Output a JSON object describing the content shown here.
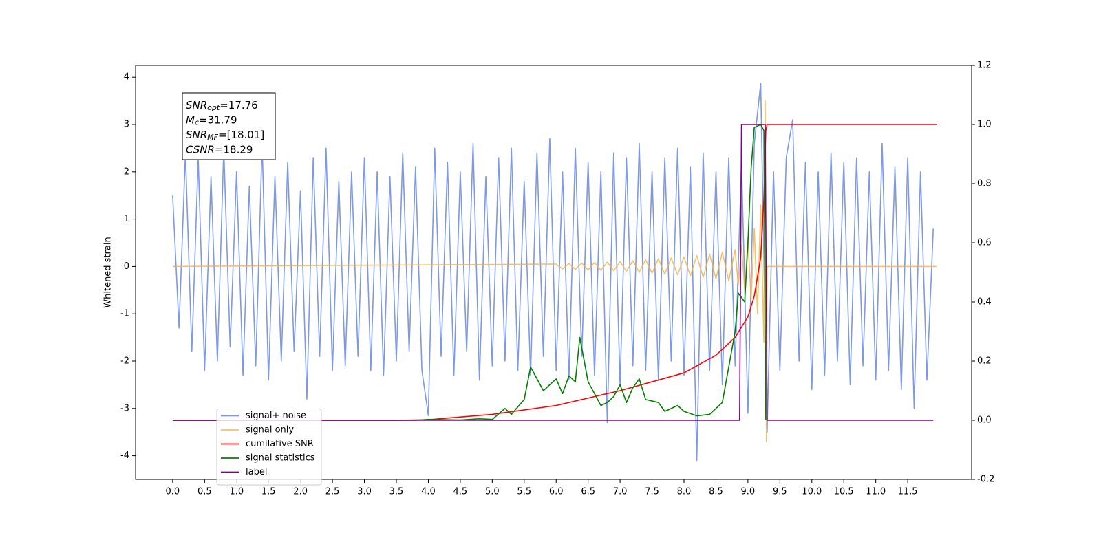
{
  "chart_data": {
    "type": "line",
    "y_label": "Whitened strain",
    "xlim": [
      -0.58,
      12.5
    ],
    "xticks": [
      {
        "value": 0,
        "label": "0.0"
      },
      0.5,
      {
        "value": 1,
        "label": "1.0"
      },
      1.5,
      {
        "value": 2,
        "label": "2.0"
      },
      2.5,
      {
        "value": 3,
        "label": "3.0"
      },
      3.5,
      {
        "value": 4,
        "label": "4.0"
      },
      4.5,
      {
        "value": 5,
        "label": "5.0"
      },
      5.5,
      {
        "value": 6,
        "label": "6.0"
      },
      6.5,
      {
        "value": 7,
        "label": "7.0"
      },
      7.5,
      {
        "value": 8,
        "label": "8.0"
      },
      8.5,
      {
        "value": 9,
        "label": "9.0"
      },
      9.5,
      {
        "value": 10,
        "label": "10.0"
      },
      10.5,
      {
        "value": 11,
        "label": "11.0"
      },
      11.5
    ],
    "ylim": [
      -4.5,
      4.25
    ],
    "yticks": [
      -4,
      -3,
      -2,
      -1,
      0,
      1,
      2,
      3,
      4
    ],
    "y2lim": [
      -0.2,
      1.2
    ],
    "y2ticks": [
      -0.2,
      {
        "value": 0,
        "label": "0.0"
      },
      0.2,
      0.4,
      0.6,
      0.8,
      {
        "value": 1,
        "label": "1.0"
      },
      1.2
    ],
    "legend": "lower left",
    "annotations": [
      {
        "main": "SNR",
        "sub": "opt",
        "rest": "=17.76"
      },
      {
        "main": "M",
        "sub": "c",
        "rest": "=31.79"
      },
      {
        "main": "SNR",
        "sub": "MF",
        "rest": "=[18.01]"
      },
      {
        "main": "CSNR",
        "sub": "",
        "rest": "=18.29"
      }
    ],
    "series": [
      {
        "name": "signal+ noise",
        "color": "#6f8ee6",
        "opacity": 0.9,
        "x": [
          0.0,
          0.1,
          0.2,
          0.3,
          0.4,
          0.5,
          0.6,
          0.7,
          0.8,
          0.9,
          1.0,
          1.1,
          1.2,
          1.3,
          1.4,
          1.5,
          1.6,
          1.7,
          1.8,
          1.9,
          2.0,
          2.1,
          2.2,
          2.3,
          2.4,
          2.5,
          2.6,
          2.7,
          2.8,
          2.9,
          3.0,
          3.1,
          3.2,
          3.3,
          3.4,
          3.5,
          3.6,
          3.7,
          3.8,
          3.9,
          4.0,
          4.1,
          4.2,
          4.3,
          4.4,
          4.5,
          4.6,
          4.7,
          4.8,
          4.9,
          5.0,
          5.1,
          5.2,
          5.3,
          5.4,
          5.5,
          5.6,
          5.7,
          5.8,
          5.9,
          6.0,
          6.1,
          6.2,
          6.3,
          6.4,
          6.5,
          6.6,
          6.7,
          6.8,
          6.9,
          7.0,
          7.1,
          7.2,
          7.3,
          7.4,
          7.5,
          7.6,
          7.7,
          7.8,
          7.9,
          8.0,
          8.1,
          8.2,
          8.3,
          8.4,
          8.5,
          8.6,
          8.7,
          8.8,
          8.9,
          9.0,
          9.1,
          9.2,
          9.3,
          9.4,
          9.5,
          9.6,
          9.7,
          9.8,
          9.9,
          10.0,
          10.1,
          10.2,
          10.3,
          10.4,
          10.5,
          10.6,
          10.7,
          10.8,
          10.9,
          11.0,
          11.1,
          11.2,
          11.3,
          11.4,
          11.5,
          11.6,
          11.7,
          11.8,
          11.9
        ],
        "values": [
          1.5,
          -1.3,
          2.4,
          -1.8,
          2.3,
          -2.2,
          1.9,
          -2.0,
          2.5,
          -1.7,
          2.0,
          -2.3,
          1.7,
          -2.1,
          2.6,
          -2.4,
          1.9,
          -2.0,
          2.2,
          -1.8,
          1.6,
          -2.8,
          2.3,
          -1.9,
          2.5,
          -2.2,
          1.8,
          -2.1,
          2.0,
          -1.9,
          2.3,
          -2.2,
          2.0,
          -2.3,
          1.9,
          -2.0,
          2.4,
          -1.8,
          2.1,
          -2.2,
          -3.15,
          2.5,
          -1.9,
          2.2,
          -2.3,
          2.0,
          -1.8,
          2.6,
          -2.4,
          1.9,
          -2.1,
          2.3,
          -2.0,
          2.5,
          -2.2,
          1.8,
          -2.3,
          2.4,
          -1.9,
          2.7,
          -2.2,
          2.0,
          -2.4,
          2.5,
          -1.9,
          2.2,
          -2.3,
          2.0,
          -3.3,
          2.4,
          -2.5,
          2.3,
          -2.1,
          2.6,
          -2.2,
          2.0,
          -2.4,
          2.3,
          -2.0,
          2.5,
          -2.3,
          2.1,
          -4.1,
          2.4,
          -2.2,
          2.0,
          -2.5,
          2.3,
          -2.1,
          2.2,
          -3.1,
          2.6,
          3.87,
          -3.5,
          2.0,
          -2.2,
          2.3,
          3.1,
          -2.0,
          2.2,
          -2.6,
          2.0,
          -2.3,
          2.4,
          -2.0,
          2.2,
          -2.5,
          2.3,
          -2.1,
          2.0,
          -2.4,
          2.6,
          -2.2,
          2.1,
          -2.6,
          2.3,
          -3.0,
          2.0,
          -2.4,
          0.8
        ]
      },
      {
        "name": "signal only",
        "color": "#f5b041",
        "opacity": 0.8,
        "x": [
          0,
          6.0,
          6.1,
          6.2,
          6.3,
          6.4,
          6.5,
          6.6,
          6.7,
          6.8,
          6.9,
          7.0,
          7.1,
          7.2,
          7.3,
          7.4,
          7.5,
          7.6,
          7.7,
          7.8,
          7.9,
          8.0,
          8.1,
          8.2,
          8.3,
          8.4,
          8.5,
          8.6,
          8.7,
          8.8,
          8.85,
          8.9,
          8.95,
          9.0,
          9.05,
          9.1,
          9.15,
          9.2,
          9.25,
          9.27,
          9.29,
          9.3,
          11.95
        ],
        "values": [
          0,
          0.05,
          -0.05,
          0.06,
          -0.06,
          0.07,
          -0.07,
          0.08,
          -0.08,
          0.09,
          -0.09,
          0.1,
          -0.1,
          0.12,
          -0.12,
          0.14,
          -0.14,
          0.16,
          -0.16,
          0.18,
          -0.18,
          0.2,
          -0.2,
          0.23,
          -0.23,
          0.26,
          -0.26,
          0.3,
          -0.3,
          0.35,
          -0.4,
          0.45,
          -0.5,
          0.6,
          -0.7,
          0.8,
          -1.0,
          1.3,
          -1.6,
          3.5,
          -3.7,
          0,
          0
        ]
      },
      {
        "name": "cumilative SNR",
        "color": "#ff0000",
        "axis": "y2",
        "x": [
          0,
          3.5,
          4,
          5,
          6,
          7,
          8,
          8.5,
          8.8,
          9.0,
          9.1,
          9.2,
          9.25,
          9.28,
          9.3,
          11.95
        ],
        "values": [
          0,
          0,
          0.002,
          0.02,
          0.05,
          0.1,
          0.16,
          0.22,
          0.28,
          0.35,
          0.42,
          0.55,
          0.75,
          0.98,
          1.0,
          1.0
        ]
      },
      {
        "name": "signal statistics",
        "color": "#008000",
        "axis": "y2",
        "x": [
          0,
          3.8,
          4.0,
          4.5,
          4.8,
          5.0,
          5.2,
          5.3,
          5.5,
          5.6,
          5.8,
          6.0,
          6.1,
          6.2,
          6.3,
          6.37,
          6.5,
          6.7,
          6.8,
          6.9,
          7.0,
          7.1,
          7.2,
          7.3,
          7.4,
          7.6,
          7.7,
          7.9,
          8.0,
          8.2,
          8.4,
          8.6,
          8.8,
          8.85,
          8.95,
          9.0,
          9.05,
          9.1,
          9.2,
          9.25,
          9.28
        ],
        "values": [
          0,
          0,
          0.003,
          0.001,
          0.005,
          0.003,
          0.04,
          0.02,
          0.07,
          0.18,
          0.1,
          0.14,
          0.09,
          0.15,
          0.13,
          0.28,
          0.13,
          0.05,
          0.06,
          0.08,
          0.12,
          0.06,
          0.11,
          0.14,
          0.07,
          0.06,
          0.03,
          0.05,
          0.03,
          0.015,
          0.02,
          0.06,
          0.3,
          0.43,
          0.4,
          0.6,
          0.85,
          0.99,
          1.0,
          0.98,
          0.0
        ]
      },
      {
        "name": "label",
        "color": "#800080",
        "axis": "y2",
        "x": [
          0,
          8.87,
          8.9,
          9.27,
          9.3,
          11.9
        ],
        "values": [
          0,
          0,
          1,
          1,
          0,
          0
        ]
      }
    ]
  }
}
